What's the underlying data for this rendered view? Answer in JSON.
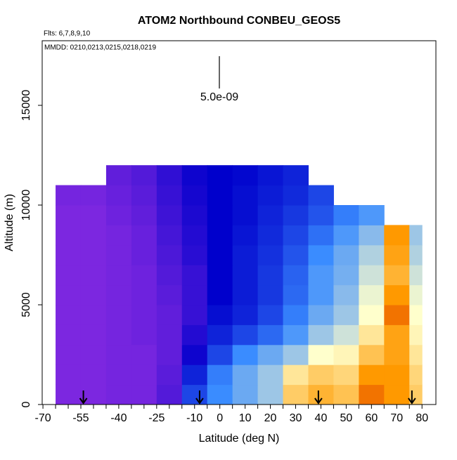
{
  "chart_data": {
    "type": "heatmap",
    "title": "ATOM2 Northbound CONBEU_GEOS5",
    "subtitle": "Flts: 6,7,8,9,10",
    "annotation": "MMDD: 0210,0213,0215,0218,0219",
    "scale_label": "5.0e-09",
    "x_label": "Latitude (deg N)",
    "y_label": "Altitude (m)",
    "xlim": [
      -70.3,
      85.5
    ],
    "ylim": [
      0,
      18240
    ],
    "xticks": [
      -70,
      -55,
      -40,
      -25,
      -10,
      0,
      10,
      20,
      30,
      40,
      50,
      60,
      70,
      80
    ],
    "xminor_ticks": [
      -65,
      -60,
      -50,
      -45,
      -35,
      -30,
      -20,
      -15,
      -5,
      5,
      15,
      25,
      35,
      45,
      55,
      65,
      75
    ],
    "yticks": [
      0,
      5000,
      10000,
      15000
    ],
    "flight_markers": [
      -54,
      -8,
      39,
      76
    ],
    "colorscale": [
      "#8a2be2",
      "#0000cc",
      "#3a8cff",
      "#ffffcc",
      "#ff9900",
      "#cc0000"
    ],
    "zlim": [
      0,
      1
    ],
    "x_edges": [
      -65,
      -55,
      -45,
      -35,
      -25,
      -15,
      -5,
      5,
      15,
      25,
      35,
      45,
      55,
      65,
      75,
      80
    ],
    "y_edges": [
      0,
      1000,
      2000,
      3000,
      4000,
      5000,
      6000,
      7000,
      8000,
      9000,
      10000,
      11000,
      12000
    ],
    "z": [
      [
        0.02,
        0.02,
        0.03,
        0.03,
        0.08,
        0.3,
        0.4,
        0.45,
        0.5,
        0.7,
        0.75,
        0.72,
        0.85,
        0.8,
        0.7
      ],
      [
        0.02,
        0.02,
        0.03,
        0.03,
        0.07,
        0.25,
        0.38,
        0.45,
        0.5,
        0.65,
        0.7,
        0.68,
        0.8,
        0.8,
        0.68
      ],
      [
        0.02,
        0.02,
        0.03,
        0.03,
        0.06,
        0.18,
        0.3,
        0.4,
        0.45,
        0.5,
        0.6,
        0.62,
        0.72,
        0.78,
        0.65
      ],
      [
        0.02,
        0.02,
        0.03,
        0.04,
        0.06,
        0.15,
        0.25,
        0.3,
        0.35,
        0.42,
        0.5,
        0.55,
        0.65,
        0.78,
        0.62
      ],
      [
        0.02,
        0.02,
        0.03,
        0.04,
        0.06,
        0.12,
        0.22,
        0.25,
        0.3,
        0.38,
        0.45,
        0.5,
        0.6,
        0.85,
        0.6
      ],
      [
        0.02,
        0.02,
        0.03,
        0.04,
        0.07,
        0.12,
        0.2,
        0.24,
        0.28,
        0.35,
        0.42,
        0.48,
        0.58,
        0.8,
        0.58
      ],
      [
        0.02,
        0.02,
        0.03,
        0.04,
        0.08,
        0.12,
        0.2,
        0.24,
        0.28,
        0.34,
        0.42,
        0.46,
        0.55,
        0.75,
        0.55
      ],
      [
        0.02,
        0.02,
        0.03,
        0.05,
        0.09,
        0.14,
        0.2,
        0.24,
        0.27,
        0.32,
        0.4,
        0.45,
        0.52,
        0.78,
        0.52
      ],
      [
        0.02,
        0.02,
        0.03,
        0.05,
        0.1,
        0.15,
        0.2,
        0.23,
        0.26,
        0.3,
        0.36,
        0.42,
        0.48,
        0.8,
        0.5
      ],
      [
        0.02,
        0.02,
        0.04,
        0.06,
        0.11,
        0.16,
        0.2,
        0.22,
        0.25,
        0.28,
        0.32,
        0.38,
        0.42,
        null,
        null
      ],
      [
        0.03,
        0.03,
        0.05,
        0.07,
        0.12,
        0.17,
        0.2,
        0.22,
        0.24,
        0.26,
        0.3,
        null,
        null,
        null,
        null
      ],
      [
        null,
        null,
        0.06,
        0.08,
        0.13,
        0.18,
        0.2,
        0.21,
        0.23,
        0.25,
        null,
        null,
        null,
        null,
        null
      ]
    ]
  }
}
